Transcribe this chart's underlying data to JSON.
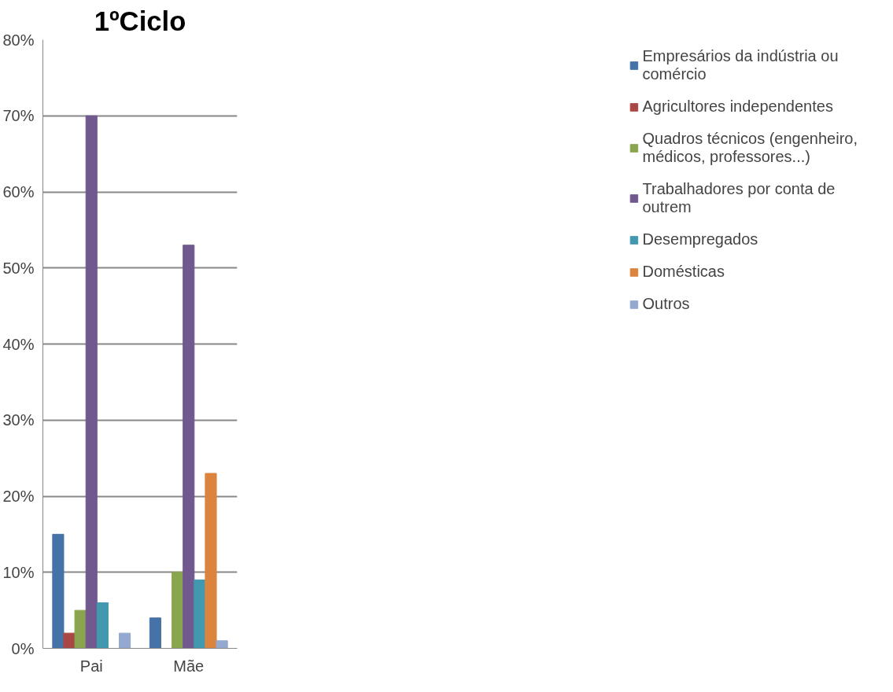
{
  "chart_data": {
    "type": "bar",
    "title": "1ºCiclo",
    "categories": [
      "Pai",
      "Mãe"
    ],
    "series": [
      {
        "name": "Empresários da indústria ou comércio",
        "color": "#4572a7",
        "values": [
          15,
          4
        ]
      },
      {
        "name": "Agricultores independentes",
        "color": "#aa4643",
        "values": [
          2,
          0
        ]
      },
      {
        "name": "Quadros técnicos (engenheiro, médicos, professores...)",
        "color": "#89a54e",
        "values": [
          5,
          10
        ]
      },
      {
        "name": "Trabalhadores por conta de outrem",
        "color": "#71588f",
        "values": [
          70,
          53
        ]
      },
      {
        "name": "Desempregados",
        "color": "#4198af",
        "values": [
          6,
          9
        ]
      },
      {
        "name": "Domésticas",
        "color": "#db843d",
        "values": [
          0,
          23
        ]
      },
      {
        "name": "Outros",
        "color": "#93a9cf",
        "values": [
          2,
          1
        ]
      }
    ],
    "ylim": [
      0,
      80
    ],
    "yticks": [
      {
        "value": 0,
        "label": "0%"
      },
      {
        "value": 10,
        "label": "10%"
      },
      {
        "value": 20,
        "label": "20%"
      },
      {
        "value": 30,
        "label": "30%"
      },
      {
        "value": 40,
        "label": "40%"
      },
      {
        "value": 50,
        "label": "50%"
      },
      {
        "value": 60,
        "label": "60%"
      },
      {
        "value": 70,
        "label": "70%"
      },
      {
        "value": 80,
        "label": "80%"
      }
    ],
    "grid": "y",
    "legend": "right"
  }
}
